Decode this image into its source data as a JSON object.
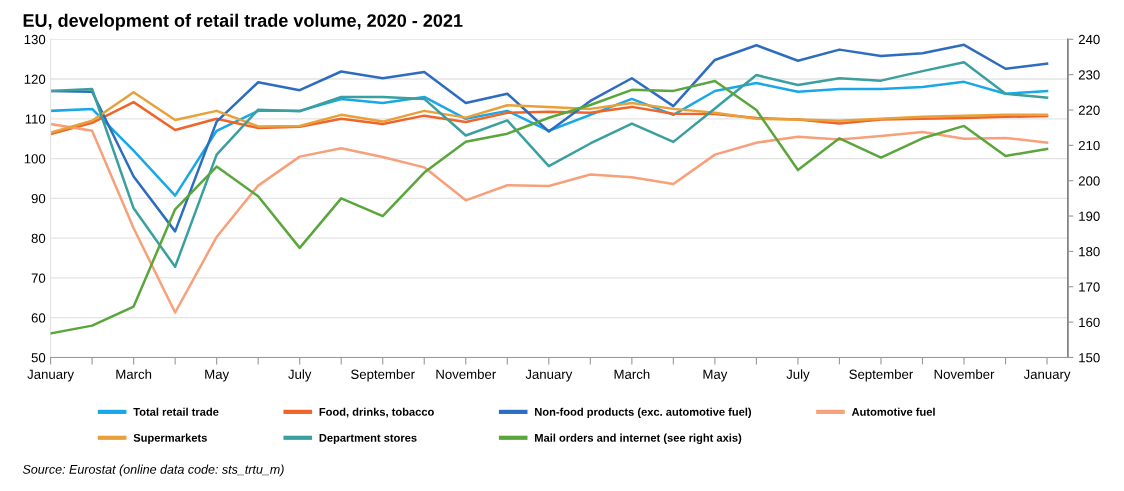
{
  "chart_data": {
    "type": "line",
    "title": "EU, development of retail trade volume, 2020 - 2021",
    "categories": [
      "January",
      null,
      "March",
      null,
      "May",
      null,
      "July",
      null,
      "September",
      null,
      "November",
      null,
      "January",
      null,
      "March",
      null,
      "May",
      null,
      "July",
      null,
      "September",
      null,
      "November",
      null,
      "January"
    ],
    "ylim": [
      50,
      130
    ],
    "yticks": [
      50,
      60,
      70,
      80,
      90,
      100,
      110,
      120,
      130
    ],
    "y2lim": [
      150,
      240
    ],
    "y2ticks": [
      150,
      160,
      170,
      180,
      190,
      200,
      210,
      220,
      230,
      240
    ],
    "grid": "y",
    "legend": "bottom",
    "marker": "none",
    "line_style": "solid",
    "annotations": [
      "Source: Eurostat (online data code: sts_trtu_m)"
    ],
    "series": [
      {
        "name": "Total retail trade",
        "color": "#1aa7e8",
        "values": [
          112,
          112.5,
          102,
          90.7,
          107,
          112,
          112,
          115,
          114,
          115.5,
          110,
          112,
          107,
          111,
          115,
          111,
          117,
          119,
          116.8,
          117.5,
          117.5,
          118,
          119.3,
          116.3,
          117
        ]
      },
      {
        "name": "Food, drinks, tobacco",
        "color": "#f0642a",
        "values": [
          106.2,
          109,
          114.2,
          107.2,
          110,
          107.7,
          108,
          110,
          108.7,
          110.8,
          109.2,
          111.5,
          111.8,
          111.5,
          113,
          111.3,
          111.2,
          110.2,
          109.8,
          108.8,
          109.8,
          110,
          110.2,
          110.5,
          110.7
        ]
      },
      {
        "name": "Non-food products (exc. automotive fuel)",
        "color": "#2d6cbf",
        "values": [
          117,
          116.8,
          95.5,
          81.7,
          109.3,
          119.2,
          117.2,
          121.9,
          120.2,
          121.8,
          114,
          116.3,
          106.8,
          114.5,
          120.2,
          113.2,
          124.8,
          128.5,
          124.6,
          127.4,
          125.8,
          126.5,
          128.6,
          122.6,
          123.9
        ]
      },
      {
        "name": "Automotive fuel",
        "color": "#f7a07a",
        "values": [
          108.7,
          107,
          82.5,
          61.3,
          80.3,
          93.2,
          100.5,
          102.6,
          100.4,
          97.8,
          89.5,
          93.3,
          93.1,
          96,
          95.3,
          93.6,
          101,
          104,
          105.5,
          104.8,
          105.7,
          106.7,
          105,
          105.2,
          104
        ]
      },
      {
        "name": "Supermarkets",
        "color": "#e8a03a",
        "values": [
          106.5,
          109.5,
          116.7,
          109.7,
          112,
          108.1,
          108.2,
          111,
          109.3,
          112,
          110.3,
          113.4,
          113,
          112.5,
          114,
          112.5,
          111.5,
          110,
          109.8,
          109.5,
          110,
          110.5,
          110.8,
          111,
          111
        ]
      },
      {
        "name": "Department stores",
        "color": "#3a9f9f",
        "values": [
          117,
          117.5,
          87.5,
          72.8,
          101,
          112.3,
          111.9,
          115.5,
          115.5,
          115,
          105.8,
          109.6,
          98.1,
          103.8,
          108.8,
          104.2,
          112.6,
          121,
          118.5,
          120.2,
          119.6,
          122,
          124.2,
          116.3,
          115.3
        ]
      },
      {
        "name": "Mail orders and internet (see right axis)",
        "color": "#5aa63c",
        "axis": "y2",
        "values": [
          156.8,
          159,
          164.4,
          191.9,
          204,
          195.6,
          181,
          195,
          190,
          202.3,
          211,
          213.3,
          217.8,
          221.4,
          225.7,
          225.4,
          228.2,
          220,
          203,
          212,
          206.5,
          212,
          215.5,
          207,
          209
        ]
      }
    ]
  }
}
